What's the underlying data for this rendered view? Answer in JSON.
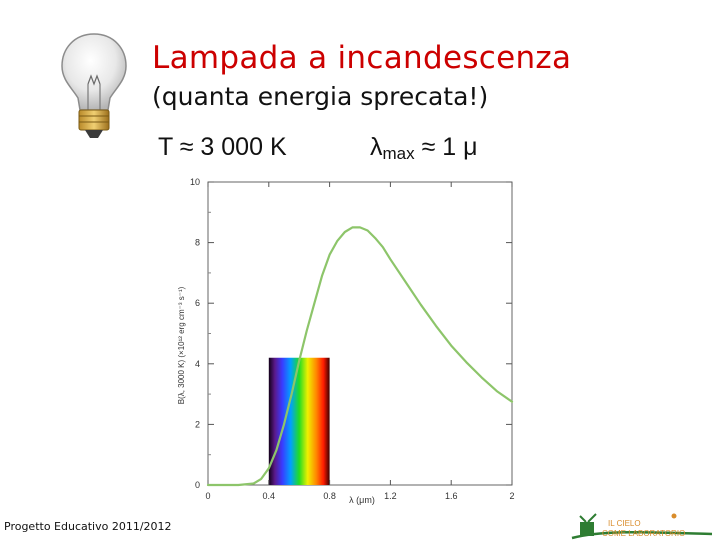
{
  "slide": {
    "title": "Lampada a incandescenza",
    "subtitle": "(quanta energia sprecata!)",
    "temperature": "T ≈ 3 000 K",
    "lambda_max": {
      "symbol": "λ",
      "sub": "max",
      "rest": " ≈ 1 μ"
    },
    "footer": "Progetto Educativo 2011/2012",
    "logo": {
      "line1": "IL CIELO",
      "line2": "COME LABORATORIO"
    },
    "colors": {
      "title": "#cc0000",
      "curve": "#8dc56a",
      "logo_text": "#d98c2b",
      "logo_green": "#2e7d32"
    },
    "icons": {
      "bulb": "light-bulb-icon",
      "logo": "telescope-logo-icon"
    }
  },
  "chart_data": {
    "type": "line",
    "xlabel": "λ (μm)",
    "ylabel": "B(λ, 3000 K) (×10¹² erg cm⁻³ s⁻¹)",
    "xlim": [
      0,
      2
    ],
    "ylim": [
      0,
      10
    ],
    "xticks": [
      0,
      0.4,
      0.8,
      1.2,
      1.6,
      2
    ],
    "xtick_labels": [
      "0",
      "0.4",
      "0.8",
      "1.2",
      "1.6",
      "2"
    ],
    "yticks": [
      0,
      2,
      4,
      6,
      8,
      10
    ],
    "ytick_labels": [
      "0",
      "2",
      "4",
      "6",
      "8",
      "10"
    ],
    "grid": false,
    "visible_band": [
      0.4,
      0.8
    ],
    "series": [
      {
        "color": "#8dc56a",
        "x": [
          0.0,
          0.1,
          0.2,
          0.3,
          0.35,
          0.4,
          0.45,
          0.5,
          0.55,
          0.6,
          0.65,
          0.7,
          0.75,
          0.8,
          0.85,
          0.9,
          0.95,
          1.0,
          1.05,
          1.1,
          1.15,
          1.2,
          1.3,
          1.4,
          1.5,
          1.6,
          1.7,
          1.8,
          1.9,
          2.0
        ],
        "y": [
          0.0,
          0.0,
          0.0,
          0.05,
          0.2,
          0.55,
          1.15,
          2.0,
          3.0,
          4.1,
          5.1,
          6.0,
          6.9,
          7.6,
          8.05,
          8.35,
          8.5,
          8.5,
          8.4,
          8.15,
          7.85,
          7.45,
          6.7,
          5.95,
          5.25,
          4.6,
          4.05,
          3.55,
          3.1,
          2.75
        ]
      }
    ]
  }
}
